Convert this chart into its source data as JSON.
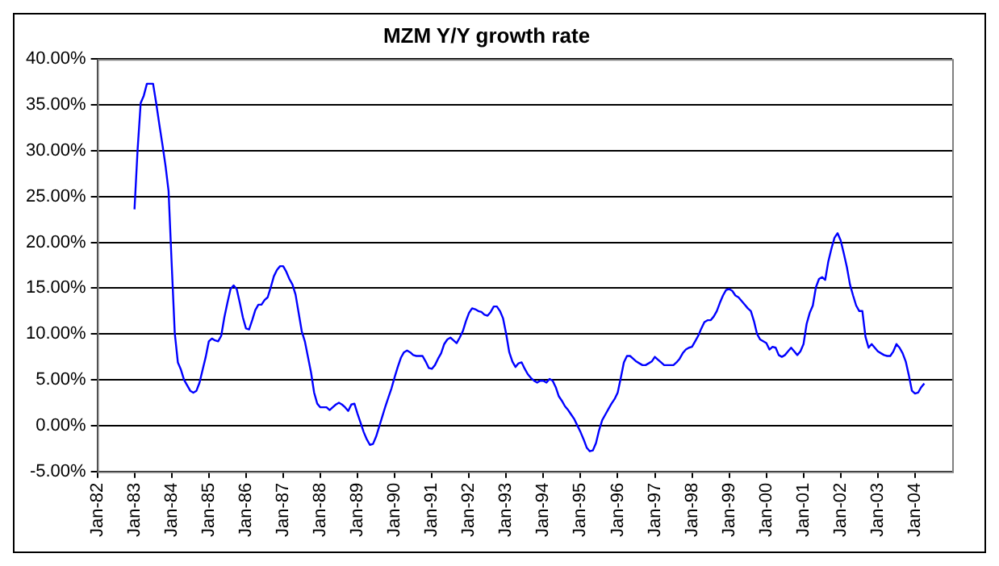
{
  "chart_data": {
    "type": "line",
    "title": "MZM Y/Y growth rate",
    "categories": [
      "Jan-82",
      null,
      null,
      null,
      null,
      null,
      null,
      null,
      null,
      null,
      null,
      null,
      "Jan-83",
      null,
      null,
      null,
      null,
      null,
      null,
      null,
      null,
      null,
      null,
      null,
      "Jan-84",
      null,
      null,
      null,
      null,
      null,
      null,
      null,
      null,
      null,
      null,
      null,
      "Jan-85",
      null,
      null,
      null,
      null,
      null,
      null,
      null,
      null,
      null,
      null,
      null,
      "Jan-86",
      null,
      null,
      null,
      null,
      null,
      null,
      null,
      null,
      null,
      null,
      null,
      "Jan-87",
      null,
      null,
      null,
      null,
      null,
      null,
      null,
      null,
      null,
      null,
      null,
      "Jan-88",
      null,
      null,
      null,
      null,
      null,
      null,
      null,
      null,
      null,
      null,
      null,
      "Jan-89",
      null,
      null,
      null,
      null,
      null,
      null,
      null,
      null,
      null,
      null,
      null,
      "Jan-90",
      null,
      null,
      null,
      null,
      null,
      null,
      null,
      null,
      null,
      null,
      null,
      "Jan-91",
      null,
      null,
      null,
      null,
      null,
      null,
      null,
      null,
      null,
      null,
      null,
      "Jan-92",
      null,
      null,
      null,
      null,
      null,
      null,
      null,
      null,
      null,
      null,
      null,
      "Jan-93",
      null,
      null,
      null,
      null,
      null,
      null,
      null,
      null,
      null,
      null,
      null,
      "Jan-94",
      null,
      null,
      null,
      null,
      null,
      null,
      null,
      null,
      null,
      null,
      null,
      "Jan-95",
      null,
      null,
      null,
      null,
      null,
      null,
      null,
      null,
      null,
      null,
      null,
      "Jan-96",
      null,
      null,
      null,
      null,
      null,
      null,
      null,
      null,
      null,
      null,
      null,
      "Jan-97",
      null,
      null,
      null,
      null,
      null,
      null,
      null,
      null,
      null,
      null,
      null,
      "Jan-98",
      null,
      null,
      null,
      null,
      null,
      null,
      null,
      null,
      null,
      null,
      null,
      "Jan-99",
      null,
      null,
      null,
      null,
      null,
      null,
      null,
      null,
      null,
      null,
      null,
      "Jan-00",
      null,
      null,
      null,
      null,
      null,
      null,
      null,
      null,
      null,
      null,
      null,
      "Jan-01",
      null,
      null,
      null,
      null,
      null,
      null,
      null,
      null,
      null,
      null,
      null,
      "Jan-02",
      null,
      null,
      null,
      null,
      null,
      null,
      null,
      null,
      null,
      null,
      null,
      "Jan-03",
      null,
      null,
      null,
      null,
      null,
      null,
      null,
      null,
      null,
      null,
      null,
      "Jan-04",
      null,
      null,
      null,
      null,
      null,
      null,
      null,
      null,
      null,
      null,
      null,
      null
    ],
    "series": [
      {
        "color": "#0000ff",
        "values": [
          null,
          null,
          null,
          null,
          null,
          null,
          null,
          null,
          null,
          null,
          null,
          null,
          23.6,
          30.1,
          35.2,
          36.0,
          37.3,
          37.3,
          37.3,
          35.2,
          32.9,
          30.7,
          28.4,
          25.6,
          17.7,
          10.1,
          6.9,
          6.1,
          5.0,
          4.4,
          3.8,
          3.6,
          3.8,
          4.7,
          6.1,
          7.5,
          9.2,
          9.5,
          9.3,
          9.2,
          9.8,
          11.8,
          13.4,
          14.9,
          15.3,
          14.9,
          13.4,
          11.8,
          10.6,
          10.5,
          11.5,
          12.6,
          13.2,
          13.2,
          13.7,
          14.0,
          15.1,
          16.3,
          17.0,
          17.4,
          17.4,
          16.8,
          16.0,
          15.4,
          14.3,
          12.3,
          10.3,
          9.2,
          7.5,
          5.8,
          3.6,
          2.4,
          2.0,
          2.0,
          2.0,
          1.7,
          2.0,
          2.3,
          2.5,
          2.3,
          2.0,
          1.6,
          2.3,
          2.4,
          1.3,
          0.3,
          -0.7,
          -1.5,
          -2.1,
          -2.0,
          -1.2,
          -0.1,
          1.0,
          2.1,
          3.1,
          4.1,
          5.3,
          6.4,
          7.4,
          8.0,
          8.2,
          8.0,
          7.7,
          7.6,
          7.6,
          7.6,
          7.0,
          6.3,
          6.2,
          6.6,
          7.3,
          7.9,
          8.9,
          9.4,
          9.6,
          9.3,
          9.0,
          9.6,
          10.3,
          11.4,
          12.3,
          12.8,
          12.7,
          12.5,
          12.4,
          12.1,
          12.0,
          12.4,
          13.0,
          13.0,
          12.5,
          11.7,
          10.0,
          8.0,
          7.0,
          6.4,
          6.8,
          6.9,
          6.2,
          5.6,
          5.2,
          4.9,
          4.7,
          4.9,
          4.9,
          4.7,
          5.1,
          4.9,
          4.2,
          3.2,
          2.7,
          2.1,
          1.7,
          1.2,
          0.7,
          0.0,
          -0.7,
          -1.5,
          -2.4,
          -2.8,
          -2.7,
          -1.9,
          -0.5,
          0.6,
          1.2,
          1.8,
          2.4,
          2.9,
          3.6,
          5.2,
          6.9,
          7.6,
          7.6,
          7.3,
          7.0,
          6.8,
          6.6,
          6.6,
          6.8,
          7.0,
          7.5,
          7.2,
          6.9,
          6.6,
          6.6,
          6.6,
          6.6,
          6.9,
          7.3,
          7.9,
          8.3,
          8.5,
          8.6,
          9.2,
          9.8,
          10.6,
          11.3,
          11.5,
          11.5,
          11.9,
          12.5,
          13.4,
          14.2,
          14.8,
          14.9,
          14.7,
          14.2,
          14.0,
          13.6,
          13.2,
          12.8,
          12.5,
          11.4,
          10.0,
          9.4,
          9.2,
          9.0,
          8.3,
          8.6,
          8.5,
          7.7,
          7.5,
          7.7,
          8.1,
          8.5,
          8.1,
          7.7,
          8.1,
          8.9,
          11.1,
          12.3,
          13.1,
          15.1,
          16.0,
          16.2,
          15.9,
          17.9,
          19.3,
          20.5,
          21.0,
          20.2,
          18.8,
          17.3,
          15.4,
          14.2,
          13.1,
          12.5,
          12.5,
          9.7,
          8.5,
          8.9,
          8.5,
          8.1,
          7.9,
          7.7,
          7.6,
          7.6,
          8.1,
          8.9,
          8.5,
          7.9,
          7.0,
          5.5,
          3.8,
          3.5,
          3.6,
          4.2,
          4.6,
          null,
          null,
          null,
          null,
          null,
          null,
          null,
          null,
          null
        ]
      }
    ],
    "ylim": [
      -5,
      40
    ],
    "yticks": [
      {
        "value": -5,
        "label": "-5.00%"
      },
      {
        "value": 0,
        "label": "0.00%"
      },
      {
        "value": 5,
        "label": "5.00%"
      },
      {
        "value": 10,
        "label": "10.00%"
      },
      {
        "value": 15,
        "label": "15.00%"
      },
      {
        "value": 20,
        "label": "20.00%"
      },
      {
        "value": 25,
        "label": "25.00%"
      },
      {
        "value": 30,
        "label": "30.00%"
      },
      {
        "value": 35,
        "label": "35.00%"
      },
      {
        "value": 40,
        "label": "40.00%"
      }
    ],
    "grid": "y",
    "legend": false
  }
}
